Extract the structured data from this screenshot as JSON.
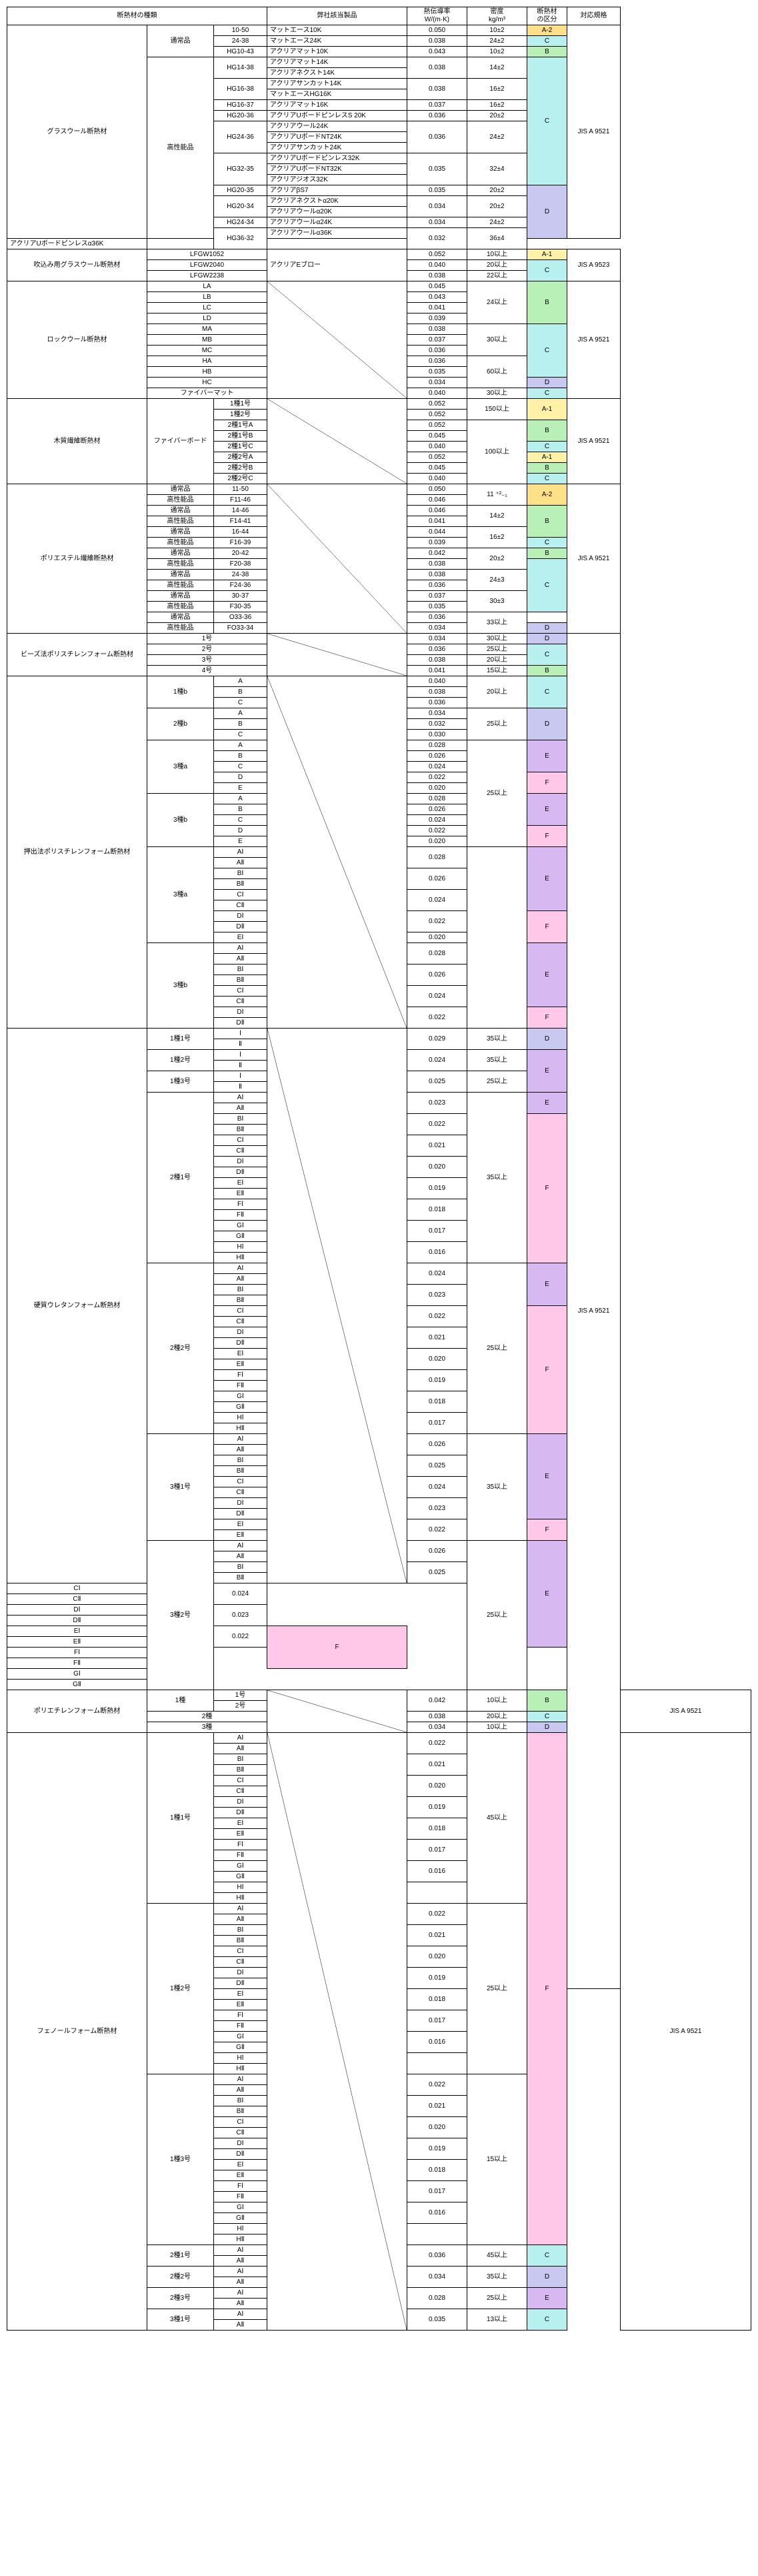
{
  "headers": {
    "type": "断熱材の種類",
    "product": "弊社該当製品",
    "conductivity": "熱伝導率\nW/(m·K)",
    "density": "密度\nkg/m³",
    "category": "断熱材\nの区分",
    "standard": "対応規格"
  },
  "jis": {
    "9521": "JIS A 9521",
    "9523": "JIS A 9523"
  },
  "rows": [
    {
      "l1": "グラスウール断熱材",
      "l1s": 20,
      "l2": "通常品",
      "l2s": 3,
      "l3": "10-50",
      "prod": "マットエース10K",
      "cond": "0.050",
      "dens": "10±2",
      "cat": "A-2",
      "catS": 1,
      "std": "9521",
      "stdS": 20
    },
    {
      "l3": "24-38",
      "prod": "マットエース24K",
      "cond": "0.038",
      "dens": "24±2",
      "cat": "C",
      "catS": 1
    },
    {
      "l3": "HG10-43",
      "prod": "アクリアマット10K",
      "cond": "0.043",
      "dens": "10±2",
      "cat": "B",
      "catS": 1
    },
    {
      "l2": "高性能品",
      "l2s": 17,
      "l3": "HG14-38",
      "l3s": 2,
      "prod": "アクリアマット14K",
      "cond": "0.038",
      "condS": 2,
      "dens": "14±2",
      "densS": 2,
      "cat": "C",
      "catS": 12
    },
    {
      "prod": "アクリアネクスト14K"
    },
    {
      "l3": "HG16-38",
      "l3s": 2,
      "prod": "アクリアサンカット14K",
      "cond": "0.038",
      "condS": 2,
      "dens": "16±2",
      "densS": 2
    },
    {
      "prod": "マットエースHG16K"
    },
    {
      "l3": "HG16-37",
      "prod": "アクリアマット16K",
      "cond": "0.037",
      "dens": "16±2"
    },
    {
      "l3": "HG20-36",
      "prod": "アクリアUボードピンレスS 20K",
      "cond": "0.036",
      "dens": "20±2"
    },
    {
      "l3": "HG24-36",
      "l3s": 3,
      "prod": "アクリアウール24K",
      "cond": "0.036",
      "condS": 3,
      "dens": "24±2",
      "densS": 3
    },
    {
      "prod": "アクリアUボードNT24K"
    },
    {
      "prod": "アクリアサンカット24K"
    },
    {
      "l3": "HG32-35",
      "l3s": 3,
      "prod": "アクリアUボードピンレス32K",
      "cond": "0.035",
      "condS": 3,
      "dens": "32±4",
      "densS": 3
    },
    {
      "prod": "アクリアUボードNT32K"
    },
    {
      "prod": "アクリアジオス32K"
    },
    {
      "l3": "HG20-35",
      "prod": "アクリアβS7",
      "cond": "0.035",
      "dens": "20±2",
      "cat": "D",
      "catS": 5
    },
    {
      "l3": "HG20-34",
      "l3s": 2,
      "prod": "アクリアネクストα20K",
      "cond": "0.034",
      "condS": 2,
      "dens": "20±2",
      "densS": 2
    },
    {
      "prod": "アクリアウールα20K"
    },
    {
      "l3": "HG24-34",
      "prod": "アクリアウールα24K",
      "cond": "0.034",
      "dens": "24±2"
    },
    {
      "l3": "HG36-32",
      "l3s": 2,
      "prod": "アクリアウールα36K",
      "cond": "0.032",
      "condS": 2,
      "dens": "36±4",
      "densS": 2
    },
    {
      "prod": "アクリアUボードピンレスα36K",
      "patchCat": "skip"
    },
    {
      "l1": "吹込み用グラスウール断熱材",
      "l1s": 3,
      "l2": "LFGW1052",
      "l2s": 1,
      "l2cs": 2,
      "prod": "アクリアEブロー",
      "prodS": 3,
      "cond": "0.052",
      "dens": "10以上",
      "cat": "A-1",
      "catS": 1,
      "std": "9523",
      "stdS": 3
    },
    {
      "l2": "LFGW2040",
      "l2cs": 2,
      "cond": "0.040",
      "dens": "20以上",
      "cat": "C",
      "catS": 2
    },
    {
      "l2": "LFGW2238",
      "l2cs": 2,
      "cond": "0.038",
      "dens": "22以上"
    },
    {
      "l1": "ロックウール断熱材",
      "l1s": 11,
      "l2": "LA",
      "l2cs": 2,
      "l2s": 1,
      "diag": true,
      "diagS": 11,
      "cond": "0.045",
      "dens": "24以上",
      "densS": 4,
      "cat": "B",
      "catS": 4,
      "std": "9521",
      "stdS": 11
    },
    {
      "l2": "LB",
      "l2cs": 2,
      "cond": "0.043"
    },
    {
      "l2": "LC",
      "l2cs": 2,
      "cond": "0.041"
    },
    {
      "l2": "LD",
      "l2cs": 2,
      "cond": "0.039"
    },
    {
      "l2": "MA",
      "l2cs": 2,
      "cond": "0.038",
      "dens": "30以上",
      "densS": 3,
      "cat": "C",
      "catS": 5
    },
    {
      "l2": "MB",
      "l2cs": 2,
      "cond": "0.037"
    },
    {
      "l2": "MC",
      "l2cs": 2,
      "cond": "0.036"
    },
    {
      "l2": "HA",
      "l2cs": 2,
      "cond": "0.036",
      "dens": "60以上",
      "densS": 3
    },
    {
      "l2": "HB",
      "l2cs": 2,
      "cond": "0.035"
    },
    {
      "l2": "HC",
      "l2cs": 2,
      "cond": "0.034",
      "cat": "D",
      "catS": 1
    },
    {
      "l2": "ファイバーマット",
      "l2cs": 2,
      "cond": "0.040",
      "dens": "30以上",
      "cat": "C",
      "catS": 1
    },
    {
      "l1": "木質繊維断熱材",
      "l1s": 8,
      "l2": "ファイバーボード",
      "l2s": 8,
      "l3": "1種1号",
      "diag": true,
      "diagS": 8,
      "cond": "0.052",
      "dens": "150以上",
      "densS": 2,
      "cat": "A-1",
      "catS": 2,
      "std": "9521",
      "stdS": 8
    },
    {
      "l3": "1種2号",
      "cond": "0.052"
    },
    {
      "l3": "2種1号A",
      "cond": "0.052",
      "dens": "100以上",
      "densS": 6,
      "cat": "B",
      "catS": 2
    },
    {
      "l3": "2種1号B",
      "cond": "0.045"
    },
    {
      "l3": "2種1号C",
      "cond": "0.040",
      "cat": "C",
      "catS": 1
    },
    {
      "l3": "2種2号A",
      "cond": "0.052",
      "cat": "A-1",
      "catS": 1
    },
    {
      "l3": "2種2号B",
      "cond": "0.045",
      "cat": "B",
      "catS": 1
    },
    {
      "l3": "2種2号C",
      "cond": "0.040",
      "cat": "C",
      "catS": 1
    },
    {
      "l1": "ポリエステル繊維断熱材",
      "l1s": 14,
      "l2": "通常品",
      "l3": "11-50",
      "diag": true,
      "diagS": 14,
      "cond": "0.050",
      "dens": "11 ⁺²₋₁",
      "densS": 2,
      "cat": "A-2",
      "catS": 2,
      "std": "9521",
      "stdS": 14
    },
    {
      "l2": "高性能品",
      "l3": "F11-46",
      "cond": "0.046"
    },
    {
      "l2": "通常品",
      "l3": "14-46",
      "cond": "0.046",
      "dens": "14±2",
      "densS": 2,
      "cat": "B",
      "catS": 3
    },
    {
      "l2": "高性能品",
      "l3": "F14-41",
      "cond": "0.041"
    },
    {
      "l2": "通常品",
      "l3": "16-44",
      "cond": "0.044",
      "dens": "16±2",
      "densS": 2
    },
    {
      "l2": "高性能品",
      "l3": "F16-39",
      "cond": "0.039",
      "cat": "C",
      "catS": 1
    },
    {
      "l2": "通常品",
      "l3": "20-42",
      "cond": "0.042",
      "dens": "20±2",
      "densS": 2,
      "cat": "B",
      "catS": 1
    },
    {
      "l2": "高性能品",
      "l3": "F20-38",
      "cond": "0.038",
      "cat": "C",
      "catS": 5
    },
    {
      "l2": "通常品",
      "l3": "24-38",
      "cond": "0.038",
      "dens": "24±3",
      "densS": 2
    },
    {
      "l2": "高性能品",
      "l3": "F24-36",
      "cond": "0.036"
    },
    {
      "l2": "通常品",
      "l3": "30-37",
      "cond": "0.037",
      "dens": "30±3",
      "densS": 2
    },
    {
      "l2": "高性能品",
      "l3": "F30-35",
      "cond": "0.035"
    },
    {
      "l2": "通常品",
      "l3": "O33-36",
      "cond": "0.036",
      "dens": "33以上",
      "densS": 2
    },
    {
      "l2": "高性能品",
      "l3": "FO33-34",
      "cond": "0.034",
      "cat": "D",
      "catS": 1
    },
    {
      "l1": "ビーズ法ポリスチレンフォーム断熱材",
      "l1s": 4,
      "l2": "1号",
      "l2cs": 2,
      "diag": true,
      "diagS": 4,
      "cond": "0.034",
      "dens": "30以上",
      "cat": "D",
      "catS": 1,
      "std": "9521",
      "stdS": 127
    },
    {
      "l2": "2号",
      "l2cs": 2,
      "cond": "0.036",
      "dens": "25以上",
      "cat": "C",
      "catS": 2
    },
    {
      "l2": "3号",
      "l2cs": 2,
      "cond": "0.038",
      "dens": "20以上"
    },
    {
      "l2": "4号",
      "l2cs": 2,
      "cond": "0.041",
      "dens": "15以上",
      "cat": "B",
      "catS": 1
    },
    {
      "l1": "押出法ポリスチレンフォーム断熱材",
      "l1s": 33,
      "l2": "1種b",
      "l2s": 3,
      "l3": "A",
      "diag": true,
      "diagS": 33,
      "cond": "0.040",
      "dens": "20以上",
      "densS": 3,
      "cat": "C",
      "catS": 3
    },
    {
      "l3": "B",
      "cond": "0.038"
    },
    {
      "l3": "C",
      "cond": "0.036"
    },
    {
      "l2": "2種b",
      "l2s": 3,
      "l3": "A",
      "cond": "0.034",
      "dens": "25以上",
      "densS": 3,
      "cat": "D",
      "catS": 3
    },
    {
      "l3": "B",
      "cond": "0.032"
    },
    {
      "l3": "C",
      "cond": "0.030"
    },
    {
      "l2": "3種a",
      "l2s": 5,
      "l3": "A",
      "cond": "0.028",
      "dens": "25以上",
      "densS": 10,
      "cat": "E",
      "catS": 3
    },
    {
      "l3": "B",
      "cond": "0.026"
    },
    {
      "l3": "C",
      "cond": "0.024"
    },
    {
      "l3": "D",
      "cond": "0.022",
      "cat": "F",
      "catS": 2
    },
    {
      "l3": "E",
      "cond": "0.020"
    },
    {
      "l2": "3種b",
      "l2s": 5,
      "l3": "A",
      "cond": "0.028",
      "cat": "E",
      "catS": 3
    },
    {
      "l3": "B",
      "cond": "0.026"
    },
    {
      "l3": "C",
      "cond": "0.024"
    },
    {
      "l3": "D",
      "cond": "0.022",
      "cat": "F",
      "catS": 2
    },
    {
      "l3": "E",
      "cond": "0.020"
    },
    {
      "l2": "3種a",
      "l2s": 9,
      "l3": "AⅠ",
      "cond": "0.028",
      "condS": 2,
      "dens": "",
      "densS": 17,
      "cat": "E",
      "catS": 6
    },
    {
      "l3": "AⅡ"
    },
    {
      "l3": "BⅠ",
      "cond": "0.026",
      "condS": 2
    },
    {
      "l3": "BⅡ"
    },
    {
      "l3": "CⅠ",
      "cond": "0.024",
      "condS": 2
    },
    {
      "l3": "CⅡ"
    },
    {
      "l3": "DⅠ",
      "cond": "0.022",
      "condS": 2,
      "cat": "F",
      "catS": 3
    },
    {
      "l3": "DⅡ"
    },
    {
      "l3": "EⅠ",
      "cond": "0.020"
    },
    {
      "l2": "3種b",
      "l2s": 8,
      "l3": "AⅠ",
      "cond": "0.028",
      "condS": 2,
      "cat": "E",
      "catS": 6
    },
    {
      "l3": "AⅡ"
    },
    {
      "l3": "BⅠ",
      "cond": "0.026",
      "condS": 2
    },
    {
      "l3": "BⅡ"
    },
    {
      "l3": "CⅠ",
      "cond": "0.024",
      "condS": 2
    },
    {
      "l3": "CⅡ"
    },
    {
      "l3": "DⅠ",
      "cond": "0.022",
      "condS": 2,
      "cat": "F",
      "catS": 2
    },
    {
      "l3": "DⅡ"
    },
    {
      "l1": "硬質ウレタンフォーム断熱材",
      "l1s": 52,
      "l2": "1種1号",
      "l2s": 2,
      "l3": "Ⅰ",
      "diag": true,
      "diagS": 52,
      "cond": "0.029",
      "condS": 2,
      "dens": "35以上",
      "densS": 2,
      "cat": "D",
      "catS": 2
    },
    {
      "l3": "Ⅱ"
    },
    {
      "l2": "1種2号",
      "l2s": 2,
      "l3": "Ⅰ",
      "cond": "0.024",
      "condS": 2,
      "dens": "35以上",
      "densS": 2,
      "cat": "E",
      "catS": 4
    },
    {
      "l3": "Ⅱ"
    },
    {
      "l2": "1種3号",
      "l2s": 2,
      "l3": "Ⅰ",
      "cond": "0.025",
      "condS": 2,
      "dens": "25以上",
      "densS": 2
    },
    {
      "l3": "Ⅱ"
    },
    {
      "l2": "2種1号",
      "l2s": 16,
      "l3": "AⅠ",
      "cond": "0.023",
      "condS": 2,
      "dens": "35以上",
      "densS": 16,
      "cat": "E",
      "catS": 2
    },
    {
      "l3": "AⅡ"
    },
    {
      "l3": "BⅠ",
      "cond": "0.022",
      "condS": 2,
      "cat": "F",
      "catS": 14
    },
    {
      "l3": "BⅡ"
    },
    {
      "l3": "CⅠ",
      "cond": "0.021",
      "condS": 2
    },
    {
      "l3": "CⅡ"
    },
    {
      "l3": "DⅠ",
      "cond": "0.020",
      "condS": 2
    },
    {
      "l3": "DⅡ"
    },
    {
      "l3": "EⅠ",
      "cond": "0.019",
      "condS": 2
    },
    {
      "l3": "EⅡ"
    },
    {
      "l3": "FⅠ",
      "cond": "0.018",
      "condS": 2
    },
    {
      "l3": "FⅡ"
    },
    {
      "l3": "GⅠ",
      "cond": "0.017",
      "condS": 2
    },
    {
      "l3": "GⅡ"
    },
    {
      "l3": "HⅠ",
      "cond": "0.016",
      "condS": 2
    },
    {
      "l3": "HⅡ"
    },
    {
      "l2": "2種2号",
      "l2s": 16,
      "l3": "AⅠ",
      "cond": "0.024",
      "condS": 2,
      "dens": "25以上",
      "densS": 16,
      "cat": "E",
      "catS": 4
    },
    {
      "l3": "AⅡ"
    },
    {
      "l3": "BⅠ",
      "cond": "0.023",
      "condS": 2
    },
    {
      "l3": "BⅡ"
    },
    {
      "l3": "CⅠ",
      "cond": "0.022",
      "condS": 2,
      "cat": "F",
      "catS": 12
    },
    {
      "l3": "CⅡ"
    },
    {
      "l3": "DⅠ",
      "cond": "0.021",
      "condS": 2
    },
    {
      "l3": "DⅡ"
    },
    {
      "l3": "EⅠ",
      "cond": "0.020",
      "condS": 2
    },
    {
      "l3": "EⅡ"
    },
    {
      "l3": "FⅠ",
      "cond": "0.019",
      "condS": 2
    },
    {
      "l3": "FⅡ"
    },
    {
      "l3": "GⅠ",
      "cond": "0.018",
      "condS": 2
    },
    {
      "l3": "GⅡ"
    },
    {
      "l3": "HⅠ",
      "cond": "0.017",
      "condS": 2
    },
    {
      "l3": "HⅡ"
    },
    {
      "l2": "3種1号",
      "l2s": 10,
      "l3": "AⅠ",
      "cond": "0.026",
      "condS": 2,
      "dens": "35以上",
      "densS": 10,
      "cat": "E",
      "catS": 8
    },
    {
      "l3": "AⅡ"
    },
    {
      "l3": "BⅠ",
      "cond": "0.025",
      "condS": 2
    },
    {
      "l3": "BⅡ"
    },
    {
      "l3": "CⅠ",
      "cond": "0.024",
      "condS": 2
    },
    {
      "l3": "CⅡ"
    },
    {
      "l3": "DⅠ",
      "cond": "0.023",
      "condS": 2
    },
    {
      "l3": "DⅡ"
    },
    {
      "l3": "EⅠ",
      "cond": "0.022",
      "condS": 2,
      "cat": "F",
      "catS": 2
    },
    {
      "l3": "EⅡ"
    },
    {
      "l2": "3種2号",
      "l2s": 14,
      "l3": "AⅠ",
      "cond": "0.026",
      "condS": 2,
      "dens": "25以上",
      "densS": 14,
      "cat": "E",
      "catS": 10
    },
    {
      "l3": "AⅡ"
    },
    {
      "l3": "BⅠ",
      "cond": "0.025",
      "condS": 2
    },
    {
      "l3": "BⅡ"
    },
    {
      "l3": "CⅠ",
      "cond": "0.024",
      "condS": 2
    },
    {
      "l3": "CⅡ"
    },
    {
      "l3": "DⅠ",
      "cond": "0.023",
      "condS": 2
    },
    {
      "l3": "DⅡ"
    },
    {
      "l3": "EⅠ",
      "cond": "0.022",
      "condS": 2,
      "cat": "F",
      "catS": 4
    },
    {
      "l3": "EⅡ"
    },
    {
      "l3": "FⅠ"
    },
    {
      "l3": "FⅡ"
    },
    {
      "l3": "GⅠ"
    },
    {
      "l3": "GⅡ"
    },
    {
      "l1": "ポリエチレンフォーム断熱材",
      "l1s": 4,
      "l2": "1種",
      "l2s": 2,
      "l3": "1号",
      "diag": true,
      "diagS": 4,
      "cond": "0.042",
      "condS": 2,
      "dens": "10以上",
      "densS": 2,
      "cat": "B",
      "catS": 2,
      "std": "9521",
      "stdS": 4
    },
    {
      "l3": "2号"
    },
    {
      "l2": "2種",
      "l2cs": 2,
      "cond": "0.038",
      "dens": "20以上",
      "cat": "C",
      "catS": 1
    },
    {
      "l2": "3種",
      "l2cs": 2,
      "cond": "0.034",
      "dens": "10以上",
      "cat": "D",
      "catS": 1
    },
    {
      "l1": "フェノールフォーム断熱材",
      "l1s": 58,
      "l2": "1種1号",
      "l2s": 16,
      "l3": "AⅠ",
      "diag": true,
      "diagS": 58,
      "cond": "0.022",
      "condS": 2,
      "dens": "45以上",
      "densS": 16,
      "cat": "F",
      "catS": 48,
      "std": "9521",
      "stdS": 58
    },
    {
      "l3": "AⅡ"
    },
    {
      "l3": "BⅠ",
      "cond": "0.021",
      "condS": 2
    },
    {
      "l3": "BⅡ"
    },
    {
      "l3": "CⅠ",
      "cond": "0.020",
      "condS": 2
    },
    {
      "l3": "CⅡ"
    },
    {
      "l3": "DⅠ",
      "cond": "0.019",
      "condS": 2
    },
    {
      "l3": "DⅡ"
    },
    {
      "l3": "EⅠ",
      "cond": "0.018",
      "condS": 2
    },
    {
      "l3": "EⅡ"
    },
    {
      "l3": "FⅠ",
      "cond": "0.017",
      "condS": 2
    },
    {
      "l3": "FⅡ"
    },
    {
      "l3": "GⅠ",
      "cond": "0.016",
      "condS": 2
    },
    {
      "l3": "GⅡ"
    },
    {
      "l3": "HⅠ"
    },
    {
      "l3": "HⅡ"
    },
    {
      "l2": "1種2号",
      "l2s": 16,
      "l3": "AⅠ",
      "cond": "0.022",
      "condS": 2,
      "dens": "25以上",
      "densS": 16
    },
    {
      "l3": "AⅡ"
    },
    {
      "l3": "BⅠ",
      "cond": "0.021",
      "condS": 2
    },
    {
      "l3": "BⅡ"
    },
    {
      "l3": "CⅠ",
      "cond": "0.020",
      "condS": 2
    },
    {
      "l3": "CⅡ"
    },
    {
      "l3": "DⅠ",
      "cond": "0.019",
      "condS": 2
    },
    {
      "l3": "DⅡ"
    },
    {
      "l3": "EⅠ",
      "cond": "0.018",
      "condS": 2
    },
    {
      "l3": "EⅡ"
    },
    {
      "l3": "FⅠ",
      "cond": "0.017",
      "condS": 2
    },
    {
      "l3": "FⅡ"
    },
    {
      "l3": "GⅠ",
      "cond": "0.016",
      "condS": 2
    },
    {
      "l3": "GⅡ"
    },
    {
      "l3": "HⅠ"
    },
    {
      "l3": "HⅡ"
    },
    {
      "l2": "1種3号",
      "l2s": 16,
      "l3": "AⅠ",
      "cond": "0.022",
      "condS": 2,
      "dens": "15以上",
      "densS": 16
    },
    {
      "l3": "AⅡ"
    },
    {
      "l3": "BⅠ",
      "cond": "0.021",
      "condS": 2
    },
    {
      "l3": "BⅡ"
    },
    {
      "l3": "CⅠ",
      "cond": "0.020",
      "condS": 2
    },
    {
      "l3": "CⅡ"
    },
    {
      "l3": "DⅠ",
      "cond": "0.019",
      "condS": 2
    },
    {
      "l3": "DⅡ"
    },
    {
      "l3": "EⅠ",
      "cond": "0.018",
      "condS": 2
    },
    {
      "l3": "EⅡ"
    },
    {
      "l3": "FⅠ",
      "cond": "0.017",
      "condS": 2
    },
    {
      "l3": "FⅡ"
    },
    {
      "l3": "GⅠ",
      "cond": "0.016",
      "condS": 2
    },
    {
      "l3": "GⅡ"
    },
    {
      "l3": "HⅠ"
    },
    {
      "l3": "HⅡ"
    },
    {
      "l2": "2種1号",
      "l2s": 2,
      "l3": "AⅠ",
      "cond": "0.036",
      "condS": 2,
      "dens": "45以上",
      "densS": 2,
      "cat": "C",
      "catS": 2
    },
    {
      "l3": "AⅡ"
    },
    {
      "l2": "2種2号",
      "l2s": 2,
      "l3": "AⅠ",
      "cond": "0.034",
      "condS": 2,
      "dens": "35以上",
      "densS": 2,
      "cat": "D",
      "catS": 2
    },
    {
      "l3": "AⅡ"
    },
    {
      "l2": "2種3号",
      "l2s": 2,
      "l3": "AⅠ",
      "cond": "0.028",
      "condS": 2,
      "dens": "25以上",
      "densS": 2,
      "cat": "E",
      "catS": 2
    },
    {
      "l3": "AⅡ"
    },
    {
      "l2": "3種1号",
      "l2s": 2,
      "l3": "AⅠ",
      "cond": "0.035",
      "condS": 2,
      "dens": "13以上",
      "densS": 2,
      "cat": "C",
      "catS": 2
    },
    {
      "l3": "AⅡ"
    }
  ]
}
